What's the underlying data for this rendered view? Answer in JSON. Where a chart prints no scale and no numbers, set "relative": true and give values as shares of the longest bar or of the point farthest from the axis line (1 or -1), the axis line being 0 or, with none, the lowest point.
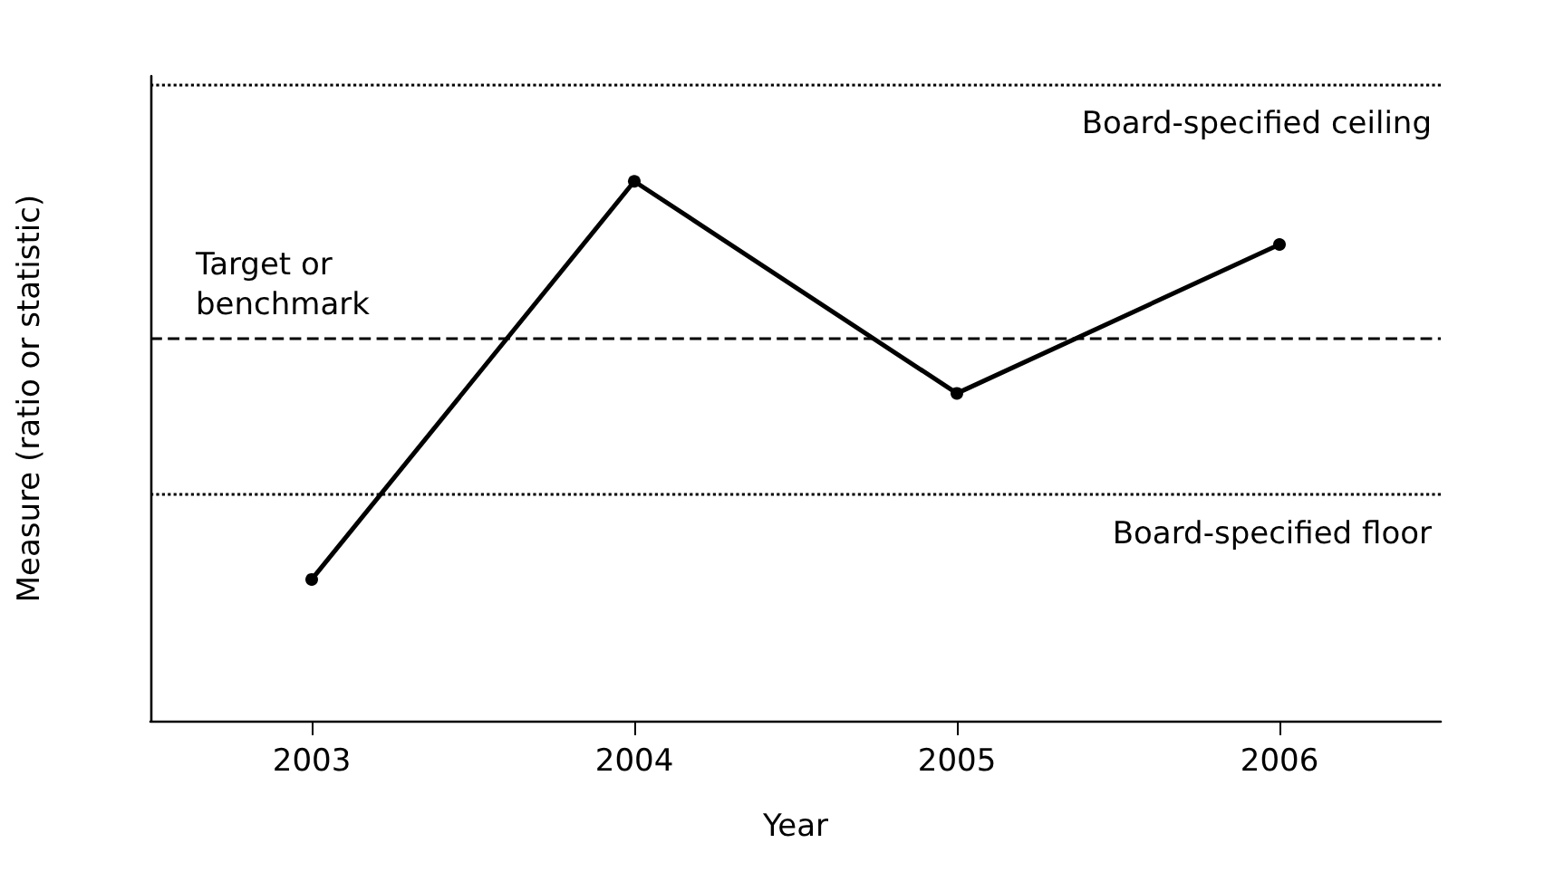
{
  "chart_data": {
    "type": "line",
    "xlabel": "Year",
    "ylabel": "Measure (ratio or statistic)",
    "categories": [
      "2003",
      "2004",
      "2005",
      "2006"
    ],
    "series": [
      {
        "color": "#000000",
        "values": [
          0.262,
          1,
          0.607,
          0.883
        ]
      }
    ],
    "relative": true,
    "marker": "circle",
    "line_style": "solid",
    "grid": false,
    "tick_labels": "x",
    "ref_lines": [
      {
        "axis": "y",
        "value": 1.181,
        "label": "Board-specified ceiling",
        "line_style": "dotted",
        "color": "#000000"
      },
      {
        "axis": "y",
        "value": 0.711,
        "label": "Target or benchmark",
        "line_style": "dashed",
        "color": "#000000"
      },
      {
        "axis": "y",
        "value": 0.423,
        "label": "Board-specified floor",
        "line_style": "dotted",
        "color": "#000000"
      }
    ]
  }
}
